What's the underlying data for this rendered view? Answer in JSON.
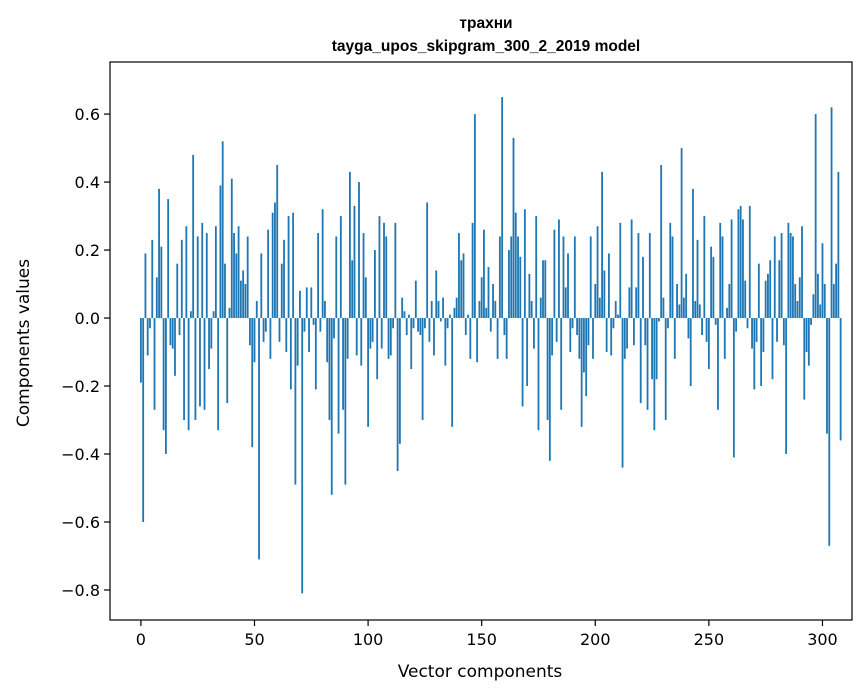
{
  "chart_data": {
    "type": "bar",
    "title": "трахни",
    "subtitle": "tayga_upos_skipgram_300_2_2019 model",
    "xlabel": "Vector components",
    "ylabel": "Components values",
    "xlim": [
      -13.6,
      313
    ],
    "ylim": [
      -0.8883,
      0.7532
    ],
    "x_ticks": [
      0,
      50,
      100,
      150,
      200,
      250,
      300
    ],
    "x_tick_labels": [
      "0",
      "50",
      "100",
      "150",
      "200",
      "250",
      "300"
    ],
    "y_ticks": [
      -0.8,
      -0.6,
      -0.4,
      -0.2,
      0.0,
      0.2,
      0.4,
      0.6
    ],
    "y_tick_labels": [
      "−0.8",
      "−0.6",
      "−0.4",
      "−0.2",
      "0.0",
      "0.2",
      "0.4",
      "0.6"
    ],
    "bar_color": "#1f77b4",
    "grid": false,
    "values": [
      -0.19,
      -0.6,
      0.19,
      -0.11,
      -0.03,
      0.23,
      -0.27,
      0.12,
      0.38,
      0.21,
      -0.33,
      -0.4,
      0.35,
      -0.08,
      -0.09,
      -0.17,
      0.16,
      -0.05,
      0.23,
      -0.3,
      0.27,
      -0.33,
      0.02,
      0.48,
      -0.3,
      0.24,
      -0.26,
      0.28,
      -0.27,
      0.25,
      -0.15,
      -0.09,
      0.02,
      0.27,
      -0.33,
      0.39,
      0.52,
      0.16,
      -0.25,
      0.03,
      0.41,
      0.25,
      0.19,
      0.27,
      0.11,
      0.14,
      0.1,
      0.24,
      -0.08,
      -0.38,
      -0.13,
      0.05,
      -0.71,
      0.19,
      -0.07,
      -0.04,
      0.26,
      -0.12,
      0.31,
      0.34,
      0.45,
      -0.07,
      0.16,
      0.23,
      -0.1,
      0.3,
      -0.21,
      0.31,
      -0.49,
      -0.14,
      0.08,
      -0.81,
      -0.04,
      0.09,
      -0.1,
      0.09,
      -0.02,
      -0.21,
      0.25,
      -0.04,
      0.32,
      0.05,
      -0.13,
      -0.3,
      -0.52,
      -0.06,
      0.24,
      -0.34,
      0.3,
      -0.27,
      -0.49,
      -0.12,
      0.43,
      0.17,
      0.33,
      -0.11,
      0.4,
      -0.14,
      0.25,
      0.12,
      -0.32,
      -0.09,
      -0.07,
      0.2,
      -0.18,
      0.3,
      -0.09,
      0.28,
      0.24,
      -0.12,
      -0.11,
      -0.03,
      0.28,
      -0.45,
      -0.37,
      0.06,
      0.02,
      -0.05,
      0.01,
      -0.15,
      -0.03,
      0.11,
      -0.04,
      -0.05,
      -0.3,
      -0.03,
      0.34,
      -0.07,
      0.05,
      -0.11,
      0.14,
      0.05,
      -0.01,
      0.06,
      -0.14,
      -0.03,
      0.01,
      -0.32,
      0.03,
      0.06,
      0.25,
      0.17,
      0.19,
      -0.05,
      0.01,
      -0.12,
      0.28,
      0.6,
      -0.13,
      0.05,
      0.12,
      0.26,
      0.03,
      0.15,
      -0.04,
      0.1,
      0.05,
      -0.12,
      0.24,
      0.65,
      -0.05,
      -0.12,
      0.2,
      0.24,
      0.53,
      0.31,
      0.24,
      0.18,
      -0.26,
      0.32,
      -0.2,
      0.13,
      0.05,
      -0.09,
      0.3,
      -0.33,
      0.06,
      0.17,
      0.17,
      -0.3,
      -0.42,
      -0.11,
      0.26,
      -0.07,
      0.29,
      -0.27,
      0.24,
      0.09,
      0.19,
      -0.1,
      -0.03,
      0.24,
      -0.05,
      -0.12,
      -0.32,
      -0.16,
      -0.23,
      -0.08,
      0.24,
      -0.12,
      0.1,
      0.27,
      0.06,
      0.43,
      0.14,
      -0.1,
      0.19,
      -0.11,
      -0.03,
      0.05,
      0.01,
      0.28,
      -0.44,
      -0.12,
      -0.09,
      0.09,
      0.29,
      -0.08,
      0.09,
      0.25,
      -0.25,
      0.18,
      -0.08,
      -0.27,
      0.25,
      -0.18,
      -0.33,
      -0.18,
      -0.01,
      0.45,
      0.06,
      -0.3,
      -0.03,
      0.28,
      0.24,
      -0.12,
      0.1,
      0.04,
      0.5,
      0.06,
      0.13,
      -0.06,
      -0.2,
      0.38,
      0.05,
      0.23,
      0.04,
      -0.05,
      0.3,
      -0.07,
      -0.15,
      0.21,
      0.18,
      -0.02,
      -0.27,
      0.28,
      0.24,
      -0.12,
      0.03,
      0.1,
      0.29,
      -0.41,
      -0.04,
      0.32,
      0.33,
      0.29,
      0.11,
      -0.03,
      0.33,
      -0.09,
      -0.21,
      -0.07,
      0.16,
      -0.2,
      -0.1,
      0.11,
      0.13,
      0.17,
      -0.18,
      0.24,
      -0.07,
      0.17,
      0.25,
      -0.08,
      -0.4,
      0.28,
      0.25,
      0.24,
      0.1,
      0.05,
      0.12,
      0.27,
      -0.24,
      -0.1,
      -0.14,
      -0.02,
      0.07,
      0.6,
      0.13,
      0.04,
      0.22,
      0.1,
      -0.34,
      -0.67,
      0.62,
      0.1,
      0.16,
      0.43,
      -0.36
    ]
  }
}
